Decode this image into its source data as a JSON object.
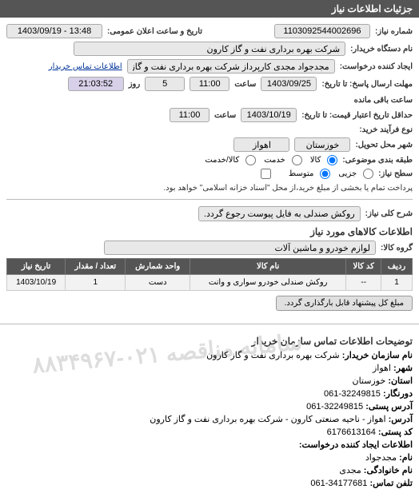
{
  "header": {
    "title": "جزئیات اطلاعات نیاز"
  },
  "form": {
    "need_no_label": "شماره نیاز:",
    "need_no": "1103092544002696",
    "announce_label": "تاریخ و ساعت اعلان عمومی:",
    "announce_value": "13:48 - 1403/09/19",
    "device_label": "نام دستگاه خریدار:",
    "device_value": "شرکت بهره برداری نفت و گاز کارون",
    "creator_label": "ایجاد کننده درخواست:",
    "creator_value": "مجدجواد مجدی کارپرداز شرکت بهره برداری نفت و گاز کارون",
    "buyer_info_link": "اطلاعات تماس خریدار",
    "reply_deadline_label": "مهلت ارسال پاسخ: تا تاریخ:",
    "reply_date": "1403/09/25",
    "time_label": "ساعت",
    "reply_time": "11:00",
    "day_label": "روز",
    "days_left": "5",
    "remain_label": "ساعت باقی مانده",
    "remain_time": "21:03:52",
    "credit_deadline_label": "حداقل تاریخ اعتبار قیمت: تا تاریخ:",
    "credit_date": "1403/10/19",
    "credit_time": "11:00",
    "process_type_label": "نوع فرآیند خرید:",
    "delivery_city_label": "شهر محل تحویل:",
    "delivery_province": "خوزستان",
    "delivery_city": "اهواز",
    "subject_class_label": "طبقه بندی موضوعی:",
    "radios": {
      "r1": "کالا",
      "r2": "خدمت",
      "r3": "کالا/خدمت"
    },
    "level_label": "سطح نیاز:",
    "lv1": "جزیی",
    "lv2": "متوسط",
    "payment_note": "پرداخت تمام یا بخشی از مبلغ خرید،از محل \"اسناد خزانه اسلامی\" خواهد بود.",
    "main_desc_label": "شرح کلی نیاز:",
    "main_desc": "روکش صندلی به فایل پیوست رجوع گردد.",
    "items_section_title": "اطلاعات کالاهای مورد نیاز",
    "group_label": "گروه کالا:",
    "group_value": "لوازم خودرو و ماشین آلات"
  },
  "table": {
    "headers": [
      "ردیف",
      "کد کالا",
      "نام کالا",
      "واحد شمارش",
      "تعداد / مقدار",
      "تاریخ نیاز"
    ],
    "rows": [
      [
        "1",
        "--",
        "روکش صندلی خودرو سواری و وانت",
        "دست",
        "1",
        "1403/10/19"
      ]
    ]
  },
  "button_upload": "مبلغ کل پیشنهاد قابل بارگذاری گردد.",
  "contact": {
    "section_title": "توضیحات اطلاعات تماس سازمان خریدار",
    "org_label": "نام سازمان خریدار:",
    "org": "شرکت بهره برداری نفت و گاز کارون",
    "city_label": "شهر:",
    "city": "اهواز",
    "province_label": "استان:",
    "province": "خوزستان",
    "fax_label": "دورنگار:",
    "fax": "32249815-061",
    "postal_addr_label": "آدرس پستی:",
    "postal_addr": "32249815-061",
    "addr_label": "آدرس:",
    "addr": "اهواز - ناحیه صنعتی کارون - شرکت بهره برداری نفت و گاز کارون",
    "postcode_label": "کد پستی:",
    "postcode": "6176613164",
    "req_creator_label": "اطلاعات ایجاد کننده درخواست:",
    "name_label": "نام:",
    "name": "مجدجواد",
    "family_label": "نام خانوادگی:",
    "family": "مجدی",
    "phone_label": "تلفن تماس:",
    "phone": "34177681-061"
  },
  "watermark": "سامانه مناقصه ۰۲۱-۸۸۳۴۹۶۷"
}
